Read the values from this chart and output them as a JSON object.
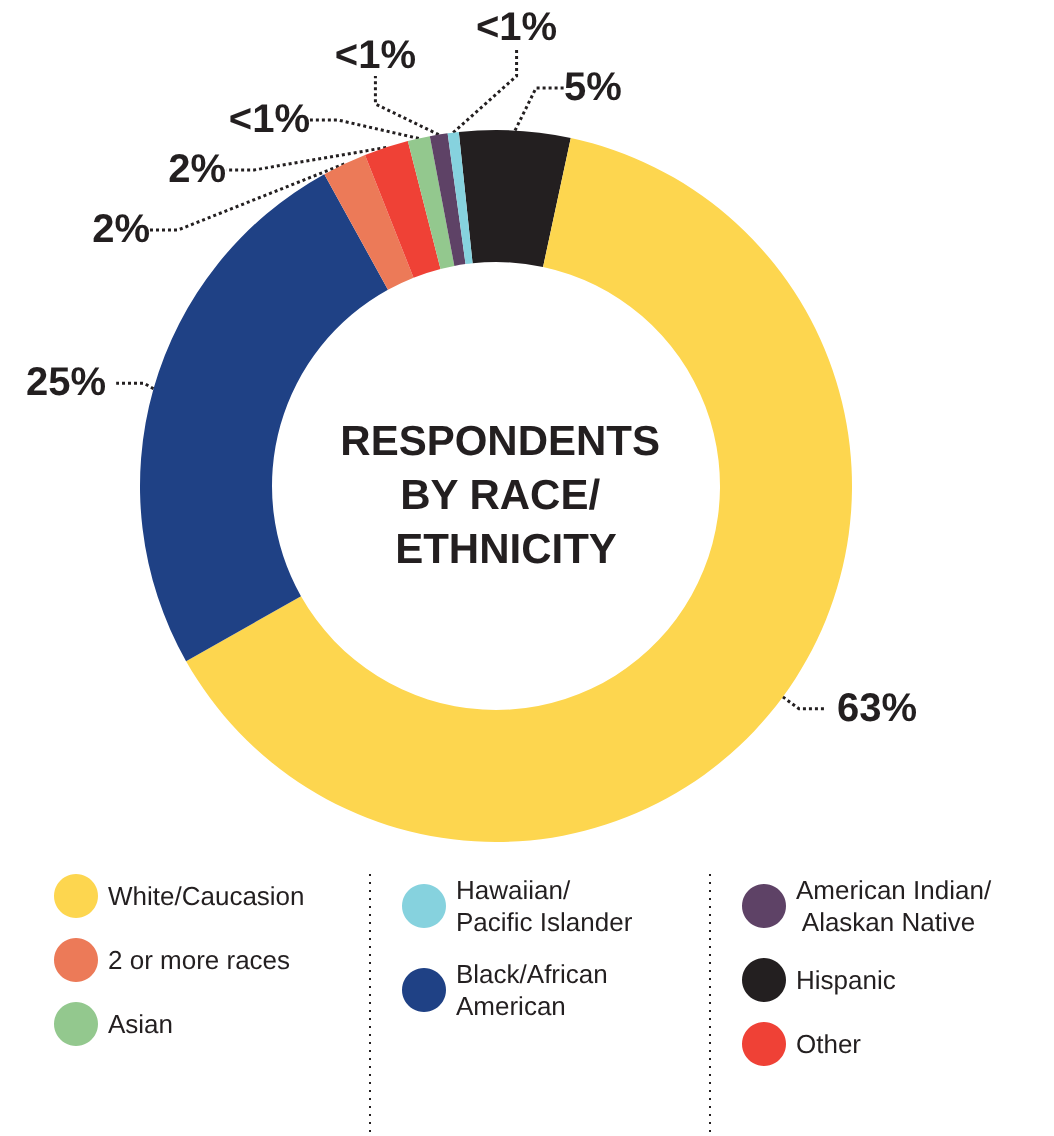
{
  "chart_data": {
    "type": "donut",
    "title": "RESPONDENTS BY RACE/ ETHNICITY",
    "categories": [
      "Hispanic",
      "White/Caucasion",
      "Black/African American",
      "2 or more races",
      "Other",
      "Asian",
      "American Indian/ Alaskan Native",
      "Hawaiian/ Pacific Islander"
    ],
    "values": [
      5,
      63,
      25,
      2,
      2,
      1,
      0.8,
      0.5
    ],
    "value_labels": [
      "5%",
      "63%",
      "25%",
      "2%",
      "2%",
      "<1%",
      "<1%",
      "<1%"
    ],
    "colors": [
      "#231f20",
      "#fdd64f",
      "#1f4185",
      "#ec7a58",
      "#ef4136",
      "#93c88e",
      "#5e4266",
      "#86d2de"
    ],
    "legend": "bottom"
  }
}
